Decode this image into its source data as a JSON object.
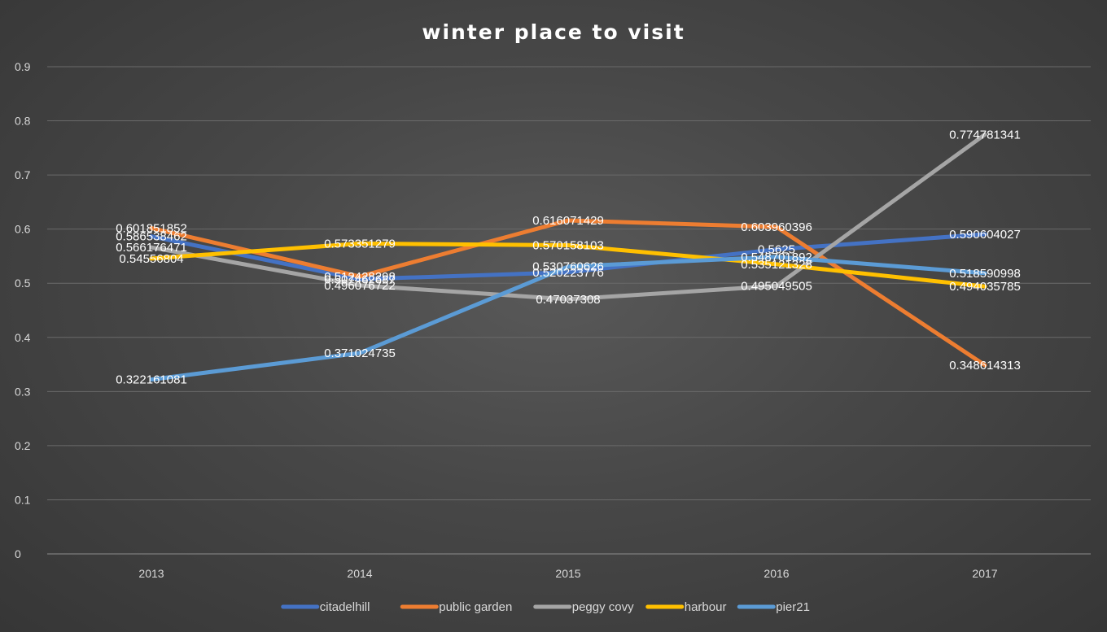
{
  "chart_data": {
    "type": "line",
    "title": "winter place to visit",
    "xlabel": "",
    "ylabel": "",
    "categories": [
      "2013",
      "2014",
      "2015",
      "2016",
      "2017"
    ],
    "ylim": [
      0,
      0.9
    ],
    "yticks": [
      "0",
      "0.1",
      "0.2",
      "0.3",
      "0.4",
      "0.5",
      "0.6",
      "0.7",
      "0.8",
      "0.9"
    ],
    "grid": true,
    "legend": "bottom",
    "series": [
      {
        "name": "citadelhill",
        "color": "#4472c4",
        "values": [
          0.586538462,
          0.507462687,
          0.520223776,
          0.5625,
          0.590604027
        ],
        "labels": [
          "0.586538462",
          "0.507462687",
          "0.520223776",
          "0.5625",
          "0.590604027"
        ]
      },
      {
        "name": "public garden",
        "color": "#ed7d31",
        "values": [
          0.601851852,
          0.512428298,
          0.616071429,
          0.603960396,
          0.348614313
        ],
        "labels": [
          "0.601851852",
          "0.512428298",
          "0.616071429",
          "0.603960396",
          "0.348614313"
        ]
      },
      {
        "name": "peggy covy",
        "color": "#a5a5a5",
        "values": [
          0.566176471,
          0.496076722,
          0.47037308,
          0.495049505,
          0.774781341
        ],
        "labels": [
          "0.566176471",
          "0.496076722",
          "0.47037308",
          "0.495049505",
          "0.774781341"
        ]
      },
      {
        "name": "harbour",
        "color": "#ffc000",
        "values": [
          0.54556804,
          0.573351279,
          0.570158103,
          0.535121328,
          0.494035785
        ],
        "labels": [
          "0.54556804",
          "0.573351279",
          "0.570158103",
          "0.535121328",
          "0.494035785"
        ]
      },
      {
        "name": "pier21",
        "color": "#5b9bd5",
        "values": [
          0.322161081,
          0.371024735,
          0.530760626,
          0.548701892,
          0.518590998
        ],
        "labels": [
          "0.322161081",
          "0.371024735",
          "0.530760626",
          "0.548701892",
          "0.518590998"
        ]
      }
    ]
  }
}
